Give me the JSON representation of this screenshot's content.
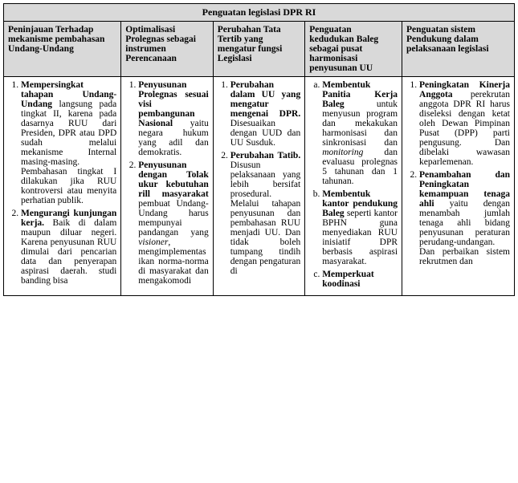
{
  "title": "Penguatan legislasi DPR RI",
  "headers": {
    "h1": "Peninjauan Terhadap mekanisme pembahasan Undang-Undang",
    "h2": "Optimalisasi Prolegnas sebagai instrumen Perencanaan",
    "h3": "Perubahan Tata Tertib yang mengatur fungsi Legislasi",
    "h4": "Penguatan kedudukan Baleg sebagai pusat harmonisasi penyusunan UU",
    "h5": "Penguatan sistem Pendukung dalam pelaksanaan legislasi"
  },
  "col1": {
    "i1_lead": "Mempersingkat tahapan Undang-Undang",
    "i1_rest": " langsung pada tingkat II, karena pada dasarnya RUU dari Presiden, DPR atau DPD sudah melalui mekanisme Internal masing-masing. Pembahasan tingkat I dilakukan jika RUU kontroversi atau menyita perhatian publik.",
    "i2_lead": "Mengurangi kunjungan kerja.",
    "i2_rest": " Baik di dalam maupun diluar negeri. Karena penyusunan RUU dimulai dari pencarian data dan penyerapan aspirasi daerah. studi banding bisa"
  },
  "col2": {
    "i1_lead": "Penyusunan Prolegnas sesuai visi pembangunan Nasional",
    "i1_rest": " yaitu negara hukum yang adil dan demokratis.",
    "i2_lead": "Penyusunan dengan Tolak ukur kebutuhan rill masyarakat",
    "i2_rest_a": " pembuat Undang-Undang harus mempunyai pandangan yang ",
    "i2_it": "visioner",
    "i2_rest_b": ", mengimplementasikan norma-norma di masyarakat dan mengakomodi"
  },
  "col3": {
    "i1_lead": "Perubahan dalam UU yang mengatur mengenai DPR.",
    "i1_rest": " Disesuaikan dengan UUD dan UU Susduk.",
    "i2_lead": "Perubahan Tatib.",
    "i2_rest": " Disusun pelaksanaan yang lebih bersifat prosedural. Melalui tahapan penyusunan dan pembahasan RUU menjadi UU. Dan tidak boleh tumpang tindih dengan pengaturan di"
  },
  "col4": {
    "a_lead": "Membentuk Panitia Kerja Baleg",
    "a_rest_a": " untuk menyusun program dan mekakukan harmonisasi dan sinkronisasi dan ",
    "a_it": "monitoring",
    "a_rest_b": " dan evaluasu prolegnas 5 tahunan dan 1 tahunan.",
    "b_lead": "Membentuk kantor pendukung Baleg",
    "b_rest": " seperti kantor BPHN guna menyediakan RUU inisiatif DPR berbasis aspirasi masyarakat.",
    "c_lead": "Memperkuat koodinasi"
  },
  "col5": {
    "i1_lead": "Peningkatan Kinerja Anggota",
    "i1_rest": " perekrutan anggota DPR RI harus diseleksi dengan ketat oleh Dewan Pimpinan Pusat (DPP) parti pengusung. Dan dibelaki wawasan keparlemenan.",
    "i2_lead": "Penambahan dan Peningkatan kemampuan tenaga ahli",
    "i2_rest": " yaitu dengan menambah jumlah tenaga ahli bidang penyusunan peraturan perudang-undangan. Dan perbaikan sistem rekrutmen dan"
  },
  "widths": {
    "c1": "23%",
    "c2": "18%",
    "c3": "18%",
    "c4": "19%",
    "c5": "22%"
  }
}
